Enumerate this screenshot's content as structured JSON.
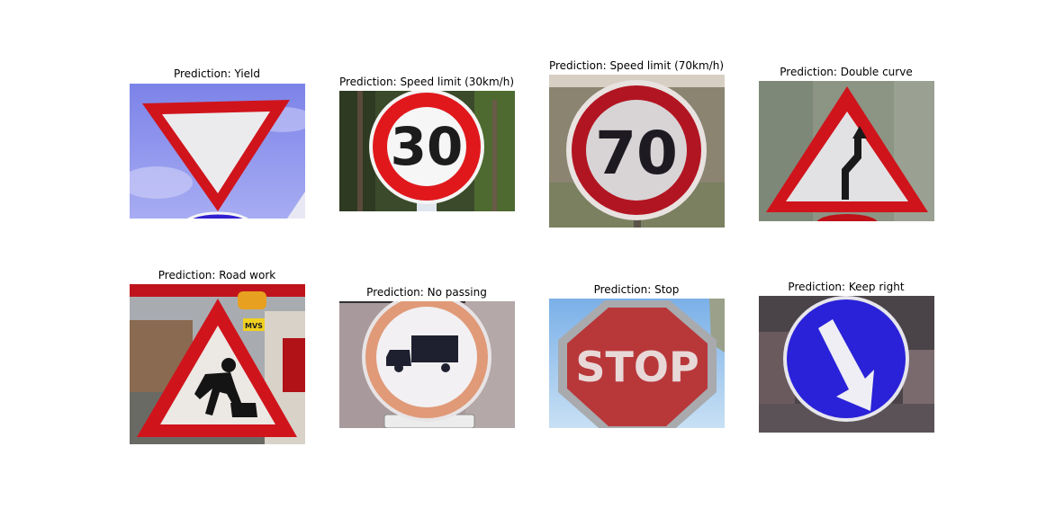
{
  "figure": {
    "panels": [
      {
        "title": "Prediction: Yield",
        "sign": "yield"
      },
      {
        "title": "Prediction: Speed limit (30km/h)",
        "sign": "speed-30",
        "sign_text": "30"
      },
      {
        "title": "Prediction: Speed limit (70km/h)",
        "sign": "speed-70",
        "sign_text": "70"
      },
      {
        "title": "Prediction: Double curve",
        "sign": "double-curve"
      },
      {
        "title": "Prediction: Road work",
        "sign": "road-work",
        "tag_text": "MVS"
      },
      {
        "title": "Prediction: No passing",
        "sign": "no-passing"
      },
      {
        "title": "Prediction: Stop",
        "sign": "stop",
        "sign_text": "STOP"
      },
      {
        "title": "Prediction: Keep right",
        "sign": "keep-right"
      }
    ]
  },
  "colors": {
    "sign_red": "#d0141c",
    "sign_blue": "#2a22d8",
    "sign_white": "#f4f4f4"
  }
}
